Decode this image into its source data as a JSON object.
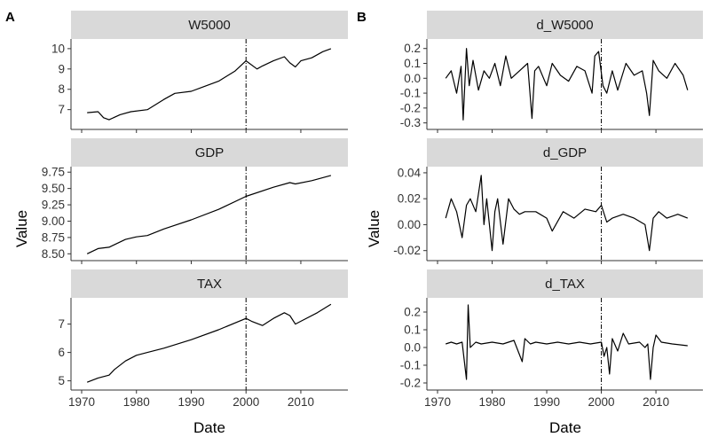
{
  "figure": {
    "panel_labels": [
      "A",
      "B"
    ],
    "ylabel": "Value",
    "xlabel": "Date"
  },
  "colors": {
    "strip_background": "#d9d9d9",
    "line": "#000000",
    "axis": "#333333"
  },
  "chart_data": [
    {
      "type": "line",
      "group": "A",
      "title": "W5000",
      "xlim": [
        1970,
        2016
      ],
      "ylim": [
        6.2,
        10.3
      ],
      "xticks": [
        1970,
        1980,
        1990,
        2000,
        2010
      ],
      "yticks": [
        7,
        8,
        9,
        10
      ],
      "vline": 2000,
      "series": [
        {
          "x": [
            1971,
            1973,
            1974,
            1975,
            1977,
            1979,
            1982,
            1985,
            1987,
            1990,
            1992,
            1995,
            1998,
            2000,
            2002,
            2003,
            2005,
            2007,
            2008,
            2009,
            2010,
            2012,
            2014,
            2015.5
          ],
          "values": [
            6.85,
            6.9,
            6.6,
            6.5,
            6.75,
            6.9,
            7.0,
            7.5,
            7.8,
            7.9,
            8.1,
            8.4,
            8.9,
            9.4,
            9.0,
            9.15,
            9.4,
            9.6,
            9.3,
            9.1,
            9.4,
            9.55,
            9.85,
            10.0
          ]
        }
      ]
    },
    {
      "type": "line",
      "group": "A",
      "title": "GDP",
      "xlim": [
        1970,
        2016
      ],
      "ylim": [
        8.45,
        9.78
      ],
      "xticks": [
        1970,
        1980,
        1990,
        2000,
        2010
      ],
      "yticks": [
        8.5,
        8.75,
        9.0,
        9.25,
        9.5,
        9.75
      ],
      "vline": 2000,
      "series": [
        {
          "x": [
            1971,
            1973,
            1975,
            1978,
            1980,
            1982,
            1985,
            1990,
            1995,
            2000,
            2005,
            2008,
            2009,
            2012,
            2015.5
          ],
          "values": [
            8.5,
            8.58,
            8.6,
            8.72,
            8.76,
            8.78,
            8.88,
            9.02,
            9.18,
            9.38,
            9.52,
            9.59,
            9.57,
            9.62,
            9.7
          ]
        }
      ]
    },
    {
      "type": "line",
      "group": "A",
      "title": "TAX",
      "xlim": [
        1970,
        2016
      ],
      "ylim": [
        4.8,
        7.8
      ],
      "xticks": [
        1970,
        1980,
        1990,
        2000,
        2010
      ],
      "yticks": [
        5,
        6,
        7
      ],
      "vline": 2000,
      "series": [
        {
          "x": [
            1971,
            1973,
            1975,
            1976,
            1978,
            1980,
            1982,
            1985,
            1990,
            1995,
            2000,
            2001,
            2003,
            2005,
            2007,
            2008,
            2009,
            2010,
            2013,
            2015.5
          ],
          "values": [
            4.95,
            5.1,
            5.2,
            5.4,
            5.7,
            5.9,
            6.0,
            6.15,
            6.45,
            6.8,
            7.2,
            7.1,
            6.95,
            7.2,
            7.4,
            7.3,
            7.0,
            7.1,
            7.4,
            7.7
          ]
        }
      ]
    },
    {
      "type": "line",
      "group": "B",
      "title": "d_W5000",
      "xlim": [
        1970,
        2016
      ],
      "ylim": [
        -0.32,
        0.24
      ],
      "xticks": [
        1970,
        1980,
        1990,
        2000,
        2010
      ],
      "yticks": [
        -0.3,
        -0.2,
        -0.1,
        0.0,
        0.1,
        0.2
      ],
      "vline": 2000,
      "series": [
        {
          "x": [
            1971.5,
            1972.5,
            1973.5,
            1974.3,
            1974.7,
            1975.3,
            1975.8,
            1976.5,
            1977.5,
            1978.5,
            1979.5,
            1980.5,
            1981.5,
            1982.5,
            1983.5,
            1985,
            1986.5,
            1987.3,
            1987.8,
            1988.5,
            1990,
            1991,
            1992.5,
            1994,
            1995.5,
            1997,
            1998.3,
            1998.8,
            1999.5,
            2000.3,
            2001,
            2002,
            2003,
            2004.5,
            2006,
            2007.5,
            2008.3,
            2008.8,
            2009.5,
            2010.5,
            2012,
            2013.5,
            2015,
            2015.8
          ],
          "values": [
            0.0,
            0.05,
            -0.1,
            0.08,
            -0.28,
            0.2,
            -0.05,
            0.12,
            -0.08,
            0.05,
            0.0,
            0.1,
            -0.05,
            0.15,
            0.0,
            0.05,
            0.1,
            -0.27,
            0.05,
            0.08,
            -0.05,
            0.1,
            0.02,
            -0.02,
            0.08,
            0.05,
            -0.1,
            0.15,
            0.18,
            -0.05,
            -0.1,
            0.05,
            -0.08,
            0.1,
            0.02,
            0.05,
            -0.1,
            -0.25,
            0.12,
            0.05,
            0.0,
            0.1,
            0.02,
            -0.08
          ]
        }
      ]
    },
    {
      "type": "line",
      "group": "B",
      "title": "d_GDP",
      "xlim": [
        1970,
        2016
      ],
      "ylim": [
        -0.025,
        0.042
      ],
      "xticks": [
        1970,
        1980,
        1990,
        2000,
        2010
      ],
      "yticks": [
        -0.02,
        0.0,
        0.02,
        0.04
      ],
      "vline": 2000,
      "series": [
        {
          "x": [
            1971.5,
            1972.5,
            1973.5,
            1974.5,
            1975.3,
            1976,
            1977,
            1978,
            1978.5,
            1979,
            1980,
            1980.5,
            1981,
            1982,
            1983,
            1984,
            1985,
            1986,
            1988,
            1990,
            1991,
            1993,
            1995,
            1997,
            1999,
            2000,
            2001,
            2002,
            2004,
            2006,
            2008,
            2008.8,
            2009.5,
            2010.5,
            2012,
            2014,
            2015.8
          ],
          "values": [
            0.005,
            0.02,
            0.01,
            -0.01,
            0.015,
            0.02,
            0.01,
            0.038,
            0.0,
            0.02,
            -0.02,
            0.01,
            0.02,
            -0.015,
            0.02,
            0.012,
            0.008,
            0.01,
            0.01,
            0.005,
            -0.005,
            0.01,
            0.005,
            0.012,
            0.01,
            0.015,
            0.002,
            0.005,
            0.008,
            0.005,
            0.0,
            -0.02,
            0.005,
            0.01,
            0.005,
            0.008,
            0.005
          ]
        }
      ]
    },
    {
      "type": "line",
      "group": "B",
      "title": "d_TAX",
      "xlim": [
        1970,
        2016
      ],
      "ylim": [
        -0.22,
        0.26
      ],
      "xticks": [
        1970,
        1980,
        1990,
        2000,
        2010
      ],
      "yticks": [
        -0.2,
        -0.1,
        0.0,
        0.1,
        0.2
      ],
      "vline": 2000,
      "series": [
        {
          "x": [
            1971.5,
            1972.5,
            1973.5,
            1974.5,
            1975.3,
            1975.6,
            1976,
            1977,
            1978,
            1980,
            1982,
            1984,
            1985.5,
            1986,
            1987,
            1988,
            1990,
            1992,
            1994,
            1996,
            1998,
            2000,
            2000.5,
            2001,
            2001.5,
            2002,
            2003,
            2004,
            2005,
            2007,
            2008,
            2008.5,
            2009,
            2009.5,
            2010,
            2011,
            2013,
            2015.8
          ],
          "values": [
            0.02,
            0.03,
            0.02,
            0.03,
            -0.18,
            0.24,
            0.0,
            0.03,
            0.02,
            0.03,
            0.02,
            0.04,
            -0.08,
            0.05,
            0.02,
            0.03,
            0.02,
            0.03,
            0.02,
            0.03,
            0.02,
            0.03,
            -0.05,
            0.0,
            -0.15,
            0.05,
            -0.02,
            0.08,
            0.02,
            0.03,
            0.0,
            0.02,
            -0.18,
            0.0,
            0.07,
            0.03,
            0.02,
            0.01
          ]
        }
      ]
    }
  ]
}
